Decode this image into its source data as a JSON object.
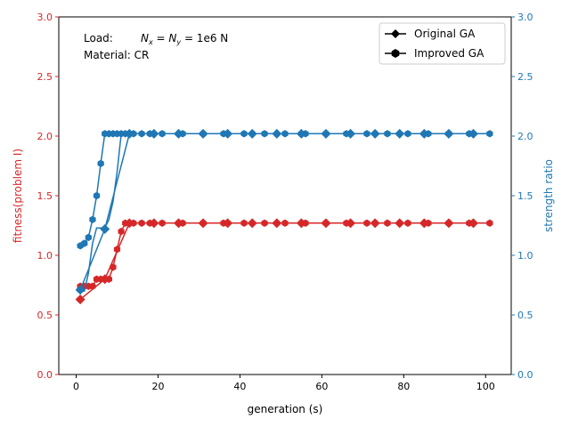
{
  "chart_data": {
    "type": "line",
    "xlabel": "generation (s)",
    "ylabel_left": "fitness(problem I)",
    "ylabel_right": "strength ratio",
    "xlim": [
      -4.25,
      106.25
    ],
    "ylim_left": [
      0,
      3
    ],
    "ylim_right": [
      0,
      3
    ],
    "x_ticks": [
      0,
      20,
      40,
      60,
      80,
      100
    ],
    "y_ticks": [
      0.0,
      0.5,
      1.0,
      1.5,
      2.0,
      2.5,
      3.0
    ],
    "y_tick_labels": [
      "0.0",
      "0.5",
      "1.0",
      "1.5",
      "2.0",
      "2.5",
      "3.0"
    ],
    "grid": false,
    "legend_position": "top-right",
    "annotations": {
      "load_label": "Load:",
      "load_formula": "N",
      "load_sub_x": "x",
      "load_sub_y": "y",
      "load_value": " = 1e6 N",
      "material": "Material: CR"
    },
    "legend": [
      {
        "label": "Original GA",
        "marker": "diamond"
      },
      {
        "label": "Improved GA",
        "marker": "hexagon"
      }
    ],
    "colors": {
      "fitness": "#d62728",
      "strength": "#1f77b4"
    },
    "series": [
      {
        "name": "Original GA",
        "axis": "left",
        "color_key": "fitness",
        "marker": "diamond",
        "x": [
          1,
          7,
          13,
          19,
          25,
          31,
          37,
          43,
          49,
          55,
          61,
          67,
          73,
          79,
          85,
          91,
          97
        ],
        "y": [
          0.63,
          0.8,
          1.27,
          1.27,
          1.27,
          1.27,
          1.27,
          1.27,
          1.27,
          1.27,
          1.27,
          1.27,
          1.27,
          1.27,
          1.27,
          1.27,
          1.27
        ]
      },
      {
        "name": "Improved GA",
        "axis": "left",
        "color_key": "fitness",
        "marker": "hexagon",
        "x": [
          1,
          2,
          3,
          4,
          5,
          6,
          7,
          8,
          9,
          10,
          11,
          12,
          13,
          14,
          16,
          18,
          21,
          26,
          31,
          36,
          41,
          46,
          51,
          56,
          61,
          66,
          71,
          76,
          81,
          86,
          91,
          96,
          101
        ],
        "y": [
          0.74,
          0.74,
          0.74,
          0.74,
          0.8,
          0.8,
          0.8,
          0.8,
          0.9,
          1.05,
          1.2,
          1.27,
          1.27,
          1.27,
          1.27,
          1.27,
          1.27,
          1.27,
          1.27,
          1.27,
          1.27,
          1.27,
          1.27,
          1.27,
          1.27,
          1.27,
          1.27,
          1.27,
          1.27,
          1.27,
          1.27,
          1.27,
          1.27
        ]
      },
      {
        "name": "Original GA",
        "axis": "right",
        "color_key": "strength",
        "marker": "diamond",
        "x": [
          1,
          7,
          13,
          19,
          25,
          31,
          37,
          43,
          49,
          55,
          61,
          67,
          73,
          79,
          85,
          91,
          97
        ],
        "y": [
          0.71,
          1.22,
          2.02,
          2.02,
          2.02,
          2.02,
          2.02,
          2.02,
          2.02,
          2.02,
          2.02,
          2.02,
          2.02,
          2.02,
          2.02,
          2.02,
          2.02
        ]
      },
      {
        "name": "Improved GA",
        "axis": "right",
        "color_key": "strength",
        "marker": "hexagon",
        "x": [
          1,
          2,
          3,
          4,
          5,
          6,
          7,
          8,
          9,
          10,
          11,
          12,
          13,
          14,
          16,
          18,
          21,
          26,
          31,
          36,
          41,
          46,
          51,
          56,
          61,
          66,
          71,
          76,
          81,
          86,
          91,
          96,
          101
        ],
        "y": [
          1.08,
          1.1,
          1.15,
          1.3,
          1.5,
          1.77,
          2.02,
          2.02,
          2.02,
          2.02,
          2.02,
          2.02,
          2.02,
          2.02,
          2.02,
          2.02,
          2.02,
          2.02,
          2.02,
          2.02,
          2.02,
          2.02,
          2.02,
          2.02,
          2.02,
          2.02,
          2.02,
          2.02,
          2.02,
          2.02,
          2.02,
          2.02,
          2.02
        ]
      },
      {
        "name": "Improved GA",
        "axis": "left",
        "color_key": "strength",
        "marker": "none",
        "x": [
          1,
          2,
          3,
          4,
          5,
          6,
          7,
          8,
          9,
          10,
          11
        ],
        "y": [
          0.7,
          0.7,
          0.85,
          1.1,
          1.23,
          1.23,
          1.23,
          1.3,
          1.45,
          1.7,
          2.02
        ]
      }
    ]
  }
}
